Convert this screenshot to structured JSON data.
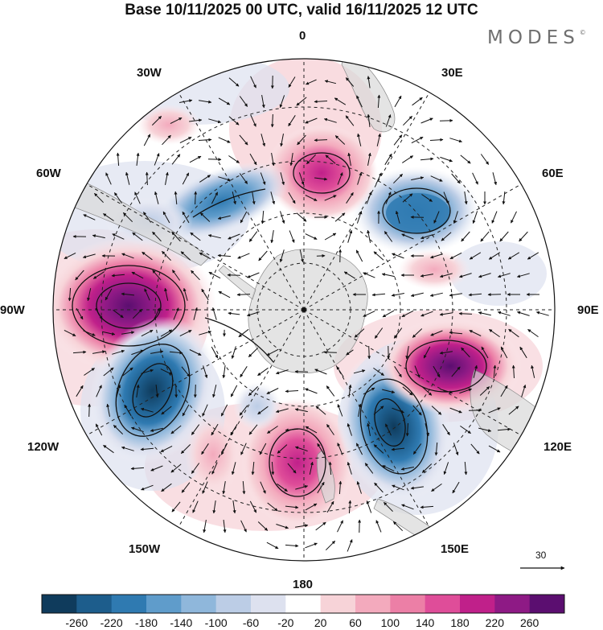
{
  "title": "Base 10/11/2025 00 UTC, valid 16/11/2025 12 UTC",
  "brand": {
    "name": "MODES",
    "mark": "©"
  },
  "longitude_labels": {
    "lon_0": "0",
    "lon_30e": "30E",
    "lon_60e": "60E",
    "lon_90e": "90E",
    "lon_120e": "120E",
    "lon_150e": "150E",
    "lon_180": "180",
    "lon_150w": "150W",
    "lon_120w": "120W",
    "lon_90w": "90W",
    "lon_60w": "60W",
    "lon_30w": "30W"
  },
  "vector_reference": {
    "value": "30"
  },
  "colorbar": {
    "colors": [
      "#0f3b5c",
      "#1d5d8c",
      "#2f7ab1",
      "#5f9ccb",
      "#8fb7db",
      "#bccde6",
      "#dde1ef",
      "#ffffff",
      "#f7d3d8",
      "#f3aabd",
      "#ec7fa6",
      "#df4d99",
      "#c0208a",
      "#8e1a85",
      "#5b0e70"
    ],
    "labels": [
      "-260",
      "-220",
      "-180",
      "-140",
      "-100",
      "-60",
      "-20",
      "20",
      "60",
      "100",
      "140",
      "180",
      "220",
      "260"
    ]
  },
  "anomalies": [
    {
      "name": "anomaly-positive-90w",
      "value": 260
    },
    {
      "name": "anomaly-negative-120w",
      "value": -260
    },
    {
      "name": "anomaly-positive-165w",
      "value": 180
    },
    {
      "name": "anomaly-negative-140e",
      "value": -220
    },
    {
      "name": "anomaly-positive-105e",
      "value": 220
    },
    {
      "name": "anomaly-negative-50e",
      "value": -180
    },
    {
      "name": "anomaly-positive-5e",
      "value": 140
    },
    {
      "name": "anomaly-negative-60w",
      "value": -140
    }
  ]
}
